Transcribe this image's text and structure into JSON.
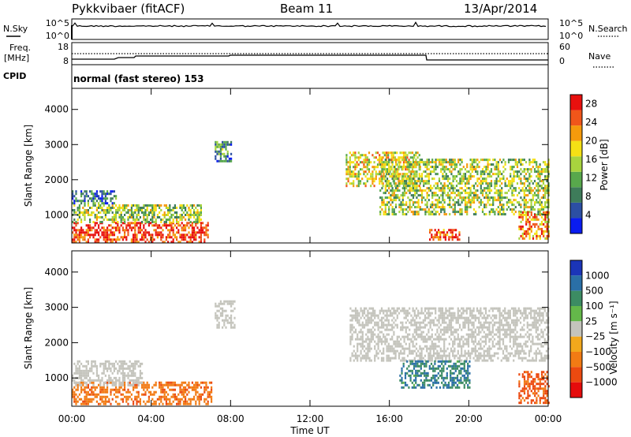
{
  "header": {
    "station": "Pykkvibaer (fitACF)",
    "beam": "Beam 11",
    "date": "13/Apr/2014"
  },
  "top_panels": {
    "nsky": {
      "left_label": "N.Sky",
      "right_label": "N.Search",
      "ticks_left": [
        "10^5",
        "10^0"
      ],
      "ticks_right": [
        "10^5",
        "10^0"
      ]
    },
    "freq": {
      "left_label_1": "Freq.",
      "left_label_2": "[MHz]",
      "right_label": "Nave",
      "ticks_left": [
        "18",
        "8"
      ],
      "ticks_right": [
        "60",
        "0"
      ]
    },
    "cpid": {
      "left_label": "CPID",
      "text": "normal (fast stereo) 153"
    }
  },
  "colors": {
    "power_scale": [
      "#0a1cf0",
      "#2c4fa3",
      "#3e7c5a",
      "#58a84c",
      "#a8d43e",
      "#f5e015",
      "#f59a0c",
      "#f0561a",
      "#e8100e"
    ],
    "velocity_scale": [
      "#1b35b8",
      "#2a6fa6",
      "#3c8c63",
      "#64b84a",
      "#c4c4bc",
      "#f2a81c",
      "#f27b14",
      "#ec4a10",
      "#e50c0c"
    ],
    "ground_scatter": "#c4c4bc"
  },
  "chart_data": [
    {
      "type": "heatmap",
      "name": "power",
      "ylabel": "Slant Range [km]",
      "y_ticks": [
        "1000",
        "2000",
        "3000",
        "4000"
      ],
      "ylim": [
        200,
        4600
      ],
      "x_ticks": [
        "00:00",
        "04:00",
        "08:00",
        "12:00",
        "16:00",
        "20:00",
        "00:00"
      ],
      "xlim_hours": [
        0,
        24
      ],
      "colorbar": {
        "label": "Power [dB]",
        "ticks": [
          "4",
          "8",
          "12",
          "16",
          "20",
          "24",
          "28"
        ],
        "range": [
          0,
          30
        ]
      },
      "regions": [
        {
          "t": [
            0.0,
            6.9
          ],
          "r": [
            250,
            800
          ],
          "value": 27
        },
        {
          "t": [
            0.0,
            6.5
          ],
          "r": [
            800,
            1300
          ],
          "value": 14
        },
        {
          "t": [
            0.0,
            2.2
          ],
          "r": [
            1300,
            1700
          ],
          "value": 7
        },
        {
          "t": [
            7.2,
            8.0
          ],
          "r": [
            2500,
            3100
          ],
          "value": 10
        },
        {
          "t": [
            13.8,
            17.5
          ],
          "r": [
            1800,
            2800
          ],
          "value": 18
        },
        {
          "t": [
            15.5,
            24.0
          ],
          "r": [
            1000,
            2600
          ],
          "value": 15
        },
        {
          "t": [
            18.0,
            19.5
          ],
          "r": [
            300,
            600
          ],
          "value": 26
        },
        {
          "t": [
            22.5,
            24.0
          ],
          "r": [
            300,
            1100
          ],
          "value": 22
        }
      ]
    },
    {
      "type": "heatmap",
      "name": "velocity",
      "ylabel": "Slant Range [km]",
      "y_ticks": [
        "1000",
        "2000",
        "3000",
        "4000"
      ],
      "ylim": [
        200,
        4600
      ],
      "x_ticks": [
        "00:00",
        "04:00",
        "08:00",
        "12:00",
        "16:00",
        "20:00",
        "00:00"
      ],
      "xlabel": "Time UT",
      "xlim_hours": [
        0,
        24
      ],
      "colorbar": {
        "label": "Velocity [m s⁻¹]",
        "ticks": [
          "1000",
          "500",
          "100",
          "25",
          "−25",
          "−100",
          "−500",
          "−1000"
        ]
      },
      "regions": [
        {
          "t": [
            0.0,
            7.0
          ],
          "r": [
            250,
            900
          ],
          "value": -350
        },
        {
          "t": [
            0.0,
            3.5
          ],
          "r": [
            800,
            1500
          ],
          "value": 0
        },
        {
          "t": [
            7.2,
            8.2
          ],
          "r": [
            2400,
            3200
          ],
          "value": 0
        },
        {
          "t": [
            14.0,
            24.0
          ],
          "r": [
            1500,
            3000
          ],
          "value": 0
        },
        {
          "t": [
            16.5,
            20.0
          ],
          "r": [
            700,
            1500
          ],
          "value": 300
        },
        {
          "t": [
            22.5,
            24.0
          ],
          "r": [
            300,
            1200
          ],
          "value": -600
        }
      ]
    }
  ]
}
